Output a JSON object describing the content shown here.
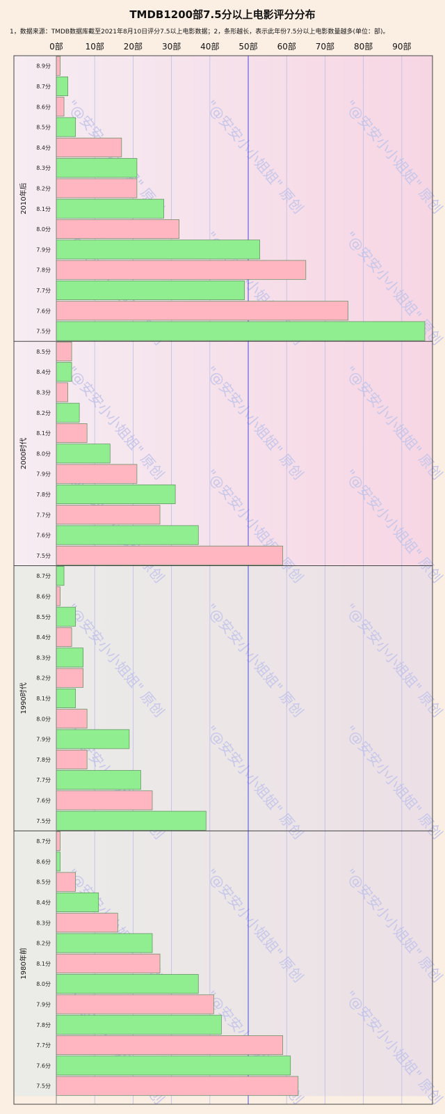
{
  "title": "TMDB1200部7.5分以上电影评分分布",
  "note": "1，数据来源：TMDB数据库截至2021年8月10日评分7.5以上电影数据；2，条形越长，表示此年份7.5分以上电影数量越多(单位：部)。",
  "watermark": "\"@安安小小姐姐\" 原创",
  "chart_data": {
    "type": "bar",
    "orientation": "horizontal",
    "x_ticks": [
      "0部",
      "10部",
      "20部",
      "30部",
      "40部",
      "50部",
      "60部",
      "70部",
      "80部",
      "90部"
    ],
    "xlim": [
      0,
      98
    ],
    "highlight_gridline": 50,
    "colors": {
      "green": "#90ee90",
      "pink": "#ffb6c1",
      "bar_stroke": "#5a8a5a",
      "gridline": "#bdbde8",
      "highlight_line": "#4a4ae0"
    },
    "groups": [
      {
        "label": "2010年后",
        "categories": [
          "8.9分",
          "8.7分",
          "8.6分",
          "8.5分",
          "8.4分",
          "8.3分",
          "8.2分",
          "8.1分",
          "8.0分",
          "7.9分",
          "7.8分",
          "7.7分",
          "7.6分",
          "7.5分"
        ],
        "values": [
          1,
          3,
          2,
          5,
          17,
          21,
          21,
          28,
          32,
          53,
          65,
          49,
          76,
          96
        ]
      },
      {
        "label": "2000时代",
        "categories": [
          "8.5分",
          "8.4分",
          "8.3分",
          "8.2分",
          "8.1分",
          "8.0分",
          "7.9分",
          "7.8分",
          "7.7分",
          "7.6分",
          "7.5分"
        ],
        "values": [
          4,
          4,
          3,
          6,
          8,
          14,
          21,
          31,
          27,
          37,
          59
        ]
      },
      {
        "label": "1990时代",
        "categories": [
          "8.7分",
          "8.6分",
          "8.5分",
          "8.4分",
          "8.3分",
          "8.2分",
          "8.1分",
          "8.0分",
          "7.9分",
          "7.8分",
          "7.7分",
          "7.6分",
          "7.5分"
        ],
        "values": [
          2,
          1,
          5,
          4,
          7,
          7,
          5,
          8,
          19,
          8,
          22,
          25,
          39
        ]
      },
      {
        "label": "1980年前",
        "categories": [
          "8.7分",
          "8.6分",
          "8.5分",
          "8.4分",
          "8.3分",
          "8.2分",
          "8.1分",
          "8.0分",
          "7.9分",
          "7.8分",
          "7.7分",
          "7.6分",
          "7.5分"
        ],
        "values": [
          1,
          1,
          5,
          11,
          16,
          25,
          27,
          37,
          41,
          43,
          59,
          61,
          63
        ]
      }
    ]
  }
}
